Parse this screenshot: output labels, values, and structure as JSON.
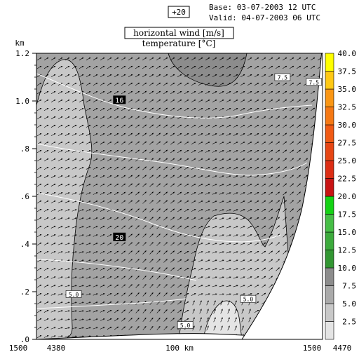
{
  "header": {
    "forecast_step": "+20",
    "base": "Base: 03-07-2003  12 UTC",
    "valid": "Valid: 04-07-2003  06 UTC"
  },
  "chart_data": {
    "type": "heatmap",
    "title": "horizontal wind [m/s]",
    "subtitle": "temperature [°C]",
    "ylabel": "km",
    "ylim": [
      0,
      1.2
    ],
    "y_ticks": [
      {
        "value": 0.0,
        "label": ".0"
      },
      {
        "value": 0.2,
        "label": ".2"
      },
      {
        "value": 0.4,
        "label": ".4"
      },
      {
        "value": 0.6,
        "label": ".6"
      },
      {
        "value": 0.8,
        "label": ".8"
      },
      {
        "value": 1.0,
        "label": "1.0"
      },
      {
        "value": 1.2,
        "label": "1.2"
      }
    ],
    "x_labels": {
      "left_height": "1500",
      "left_station": "4380",
      "center_distance": "100 km",
      "right_height": "1500",
      "right_station": "4470"
    },
    "colorbar": {
      "levels": [
        "2.5",
        "5.0",
        "7.5",
        "10.0",
        "12.5",
        "15.0",
        "17.5",
        "20.0",
        "22.5",
        "25.0",
        "27.5",
        "30.0",
        "32.5",
        "35.0",
        "37.5",
        "40.0"
      ],
      "colors": [
        "#e4e4e4",
        "#c8c8c8",
        "#aaaaaa",
        "#8c8c8c",
        "#329632",
        "#3caa3c",
        "#46be46",
        "#14d214",
        "#c81414",
        "#dc2d14",
        "#e64614",
        "#f05a14",
        "#f57814",
        "#fa9614",
        "#ffc814",
        "#ffff00"
      ]
    },
    "wind_fill": {
      "background": "#a3a3a3",
      "regions": [
        {
          "name": "upper-jet",
          "speed_class": "10.0",
          "color": "#8c8c8c"
        },
        {
          "name": "left-column",
          "speed_class": "5.0",
          "color": "#c8c8c8"
        },
        {
          "name": "surface-column",
          "speed_class": "5.0",
          "color": "#c8c8c8"
        },
        {
          "name": "right-low",
          "speed_class": "2.5",
          "color": "#e4e4e4"
        }
      ],
      "contour_labels": [
        {
          "text": "7.5",
          "x": 0.86,
          "y": 1.1
        },
        {
          "text": "7.5",
          "x": 0.97,
          "y": 1.08
        },
        {
          "text": "5.0",
          "x": 0.13,
          "y": 0.19
        },
        {
          "text": "5.0",
          "x": 0.52,
          "y": 0.06
        },
        {
          "text": "5.0",
          "x": 0.74,
          "y": 0.17
        }
      ]
    },
    "temperature_isotherms": {
      "color": "#ffffff",
      "labeled": [
        {
          "text": "16",
          "x": 0.29,
          "y": 1.005
        },
        {
          "text": "20",
          "x": 0.29,
          "y": 0.43
        }
      ]
    },
    "wind_vectors": {
      "direction": "from left toward right, veering down near surface"
    }
  }
}
